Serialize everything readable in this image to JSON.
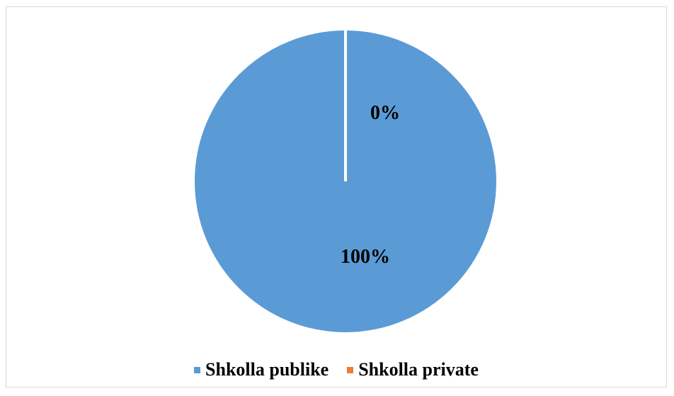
{
  "chart_data": {
    "type": "pie",
    "title": "",
    "categories": [
      "Shkolla publike",
      "Shkolla private"
    ],
    "values": [
      100,
      0
    ],
    "data_labels": [
      "100%",
      "0%"
    ],
    "colors": [
      "#5b9bd5",
      "#ed7d31"
    ],
    "legend_position": "bottom"
  }
}
